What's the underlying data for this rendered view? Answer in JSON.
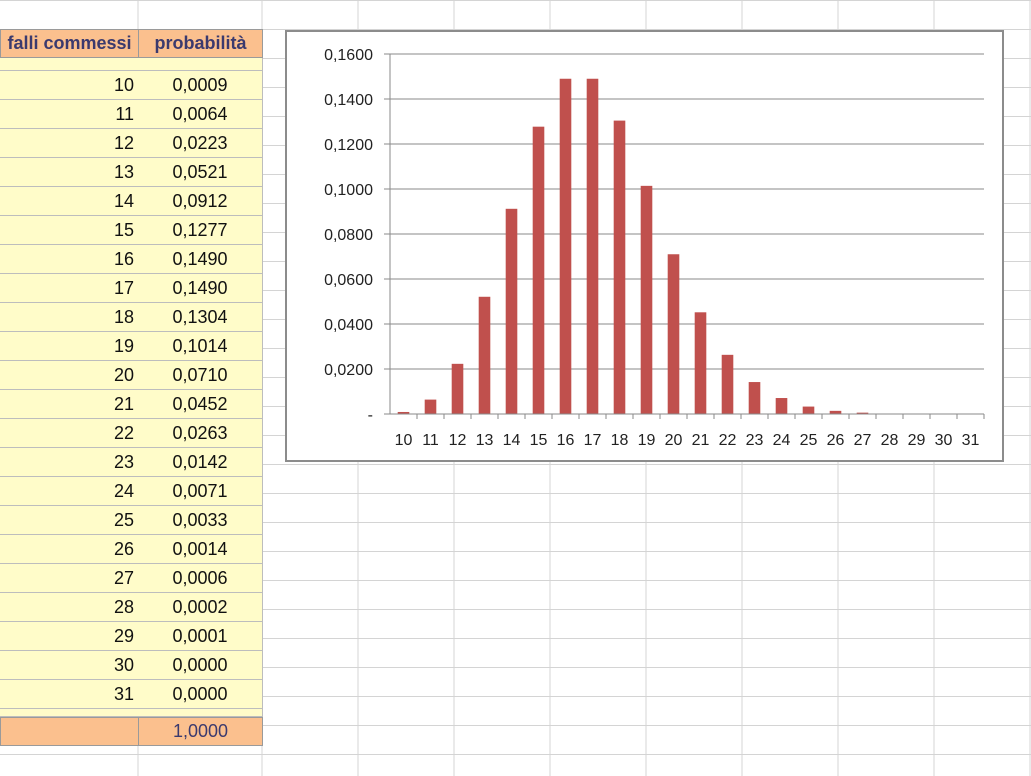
{
  "table": {
    "header_x": "falli commessi",
    "header_p": "probabilità",
    "total_value": "1,0000",
    "rows": [
      {
        "x": "10",
        "p": "0,0009"
      },
      {
        "x": "11",
        "p": "0,0064"
      },
      {
        "x": "12",
        "p": "0,0223"
      },
      {
        "x": "13",
        "p": "0,0521"
      },
      {
        "x": "14",
        "p": "0,0912"
      },
      {
        "x": "15",
        "p": "0,1277"
      },
      {
        "x": "16",
        "p": "0,1490"
      },
      {
        "x": "17",
        "p": "0,1490"
      },
      {
        "x": "18",
        "p": "0,1304"
      },
      {
        "x": "19",
        "p": "0,1014"
      },
      {
        "x": "20",
        "p": "0,0710"
      },
      {
        "x": "21",
        "p": "0,0452"
      },
      {
        "x": "22",
        "p": "0,0263"
      },
      {
        "x": "23",
        "p": "0,0142"
      },
      {
        "x": "24",
        "p": "0,0071"
      },
      {
        "x": "25",
        "p": "0,0033"
      },
      {
        "x": "26",
        "p": "0,0014"
      },
      {
        "x": "27",
        "p": "0,0006"
      },
      {
        "x": "28",
        "p": "0,0002"
      },
      {
        "x": "29",
        "p": "0,0001"
      },
      {
        "x": "30",
        "p": "0,0000"
      },
      {
        "x": "31",
        "p": "0,0000"
      }
    ]
  },
  "chart_data": {
    "type": "bar",
    "title": "",
    "xlabel": "",
    "ylabel": "",
    "categories": [
      "10",
      "11",
      "12",
      "13",
      "14",
      "15",
      "16",
      "17",
      "18",
      "19",
      "20",
      "21",
      "22",
      "23",
      "24",
      "25",
      "26",
      "27",
      "28",
      "29",
      "30",
      "31"
    ],
    "values": [
      0.0009,
      0.0064,
      0.0223,
      0.0521,
      0.0912,
      0.1277,
      0.149,
      0.149,
      0.1304,
      0.1014,
      0.071,
      0.0452,
      0.0263,
      0.0142,
      0.0071,
      0.0033,
      0.0014,
      0.0006,
      0.0002,
      0.0001,
      0.0,
      0.0
    ],
    "ylim": [
      0,
      0.16
    ],
    "yticks": [
      0,
      0.02,
      0.04,
      0.06,
      0.08,
      0.1,
      0.12,
      0.14,
      0.16
    ],
    "ytick_labels": [
      "-",
      "0,0200",
      "0,0400",
      "0,0600",
      "0,0800",
      "0,1000",
      "0,1200",
      "0,1400",
      "0,1600"
    ],
    "grid": true,
    "legend": "none",
    "bar_color": "#c0504d",
    "gridline_color": "#8a8a8a"
  }
}
